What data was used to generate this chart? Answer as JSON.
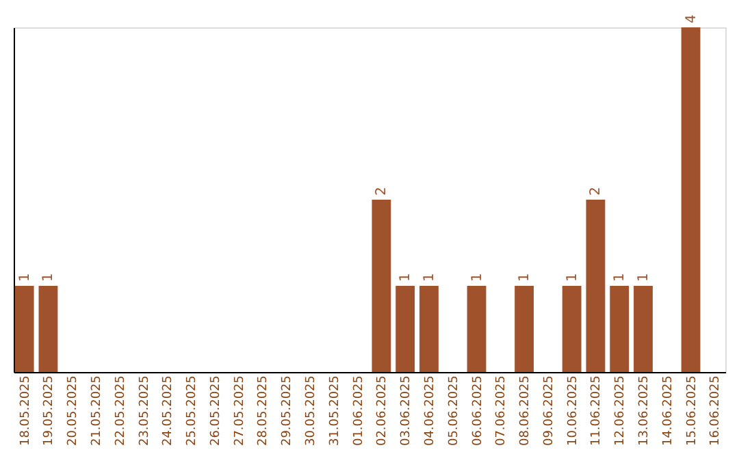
{
  "chart_data": {
    "type": "bar",
    "categories": [
      "18.05.2025",
      "19.05.2025",
      "20.05.2025",
      "21.05.2025",
      "22.05.2025",
      "23.05.2025",
      "24.05.2025",
      "25.05.2025",
      "26.05.2025",
      "27.05.2025",
      "28.05.2025",
      "29.05.2025",
      "30.05.2025",
      "31.05.2025",
      "01.06.2025",
      "02.06.2025",
      "03.06.2025",
      "04.06.2025",
      "05.06.2025",
      "06.06.2025",
      "07.06.2025",
      "08.06.2025",
      "09.06.2025",
      "10.06.2025",
      "11.06.2025",
      "12.06.2025",
      "13.06.2025",
      "14.06.2025",
      "15.06.2025",
      "16.06.2025"
    ],
    "values": [
      1,
      1,
      0,
      0,
      0,
      0,
      0,
      0,
      0,
      0,
      0,
      0,
      0,
      0,
      0,
      2,
      1,
      1,
      0,
      1,
      0,
      1,
      0,
      1,
      2,
      1,
      1,
      0,
      4,
      0
    ],
    "value_labels": [
      "1",
      "1",
      null,
      null,
      null,
      null,
      null,
      null,
      null,
      null,
      null,
      null,
      null,
      null,
      null,
      "2",
      "1",
      "1",
      null,
      "1",
      null,
      "1",
      null,
      "1",
      "2",
      "1",
      "1",
      null,
      "4",
      null
    ],
    "color": "#a0522d",
    "tick_labels": "x",
    "grid": false
  }
}
